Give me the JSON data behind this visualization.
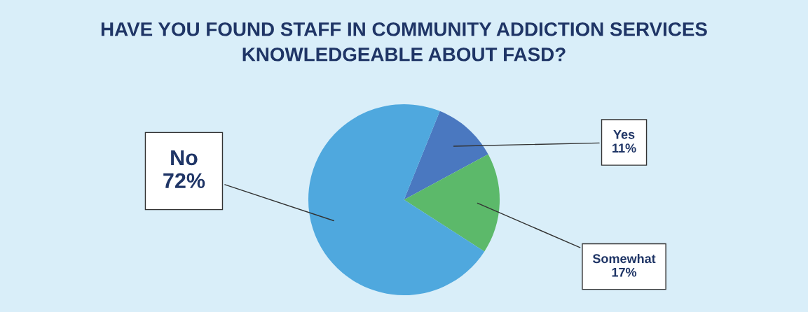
{
  "chart_data": {
    "type": "pie",
    "title": "HAVE YOU FOUND STAFF IN COMMUNITY ADDICTION SERVICES\nKNOWLEDGEABLE ABOUT FASD?",
    "categories": [
      "Yes",
      "Somewhat",
      "No"
    ],
    "values": [
      11,
      17,
      72
    ],
    "value_labels": [
      "11%",
      "17%",
      "72%"
    ],
    "colors": [
      "#4a78c0",
      "#5cb96a",
      "#4fa8de"
    ],
    "legend": false
  }
}
